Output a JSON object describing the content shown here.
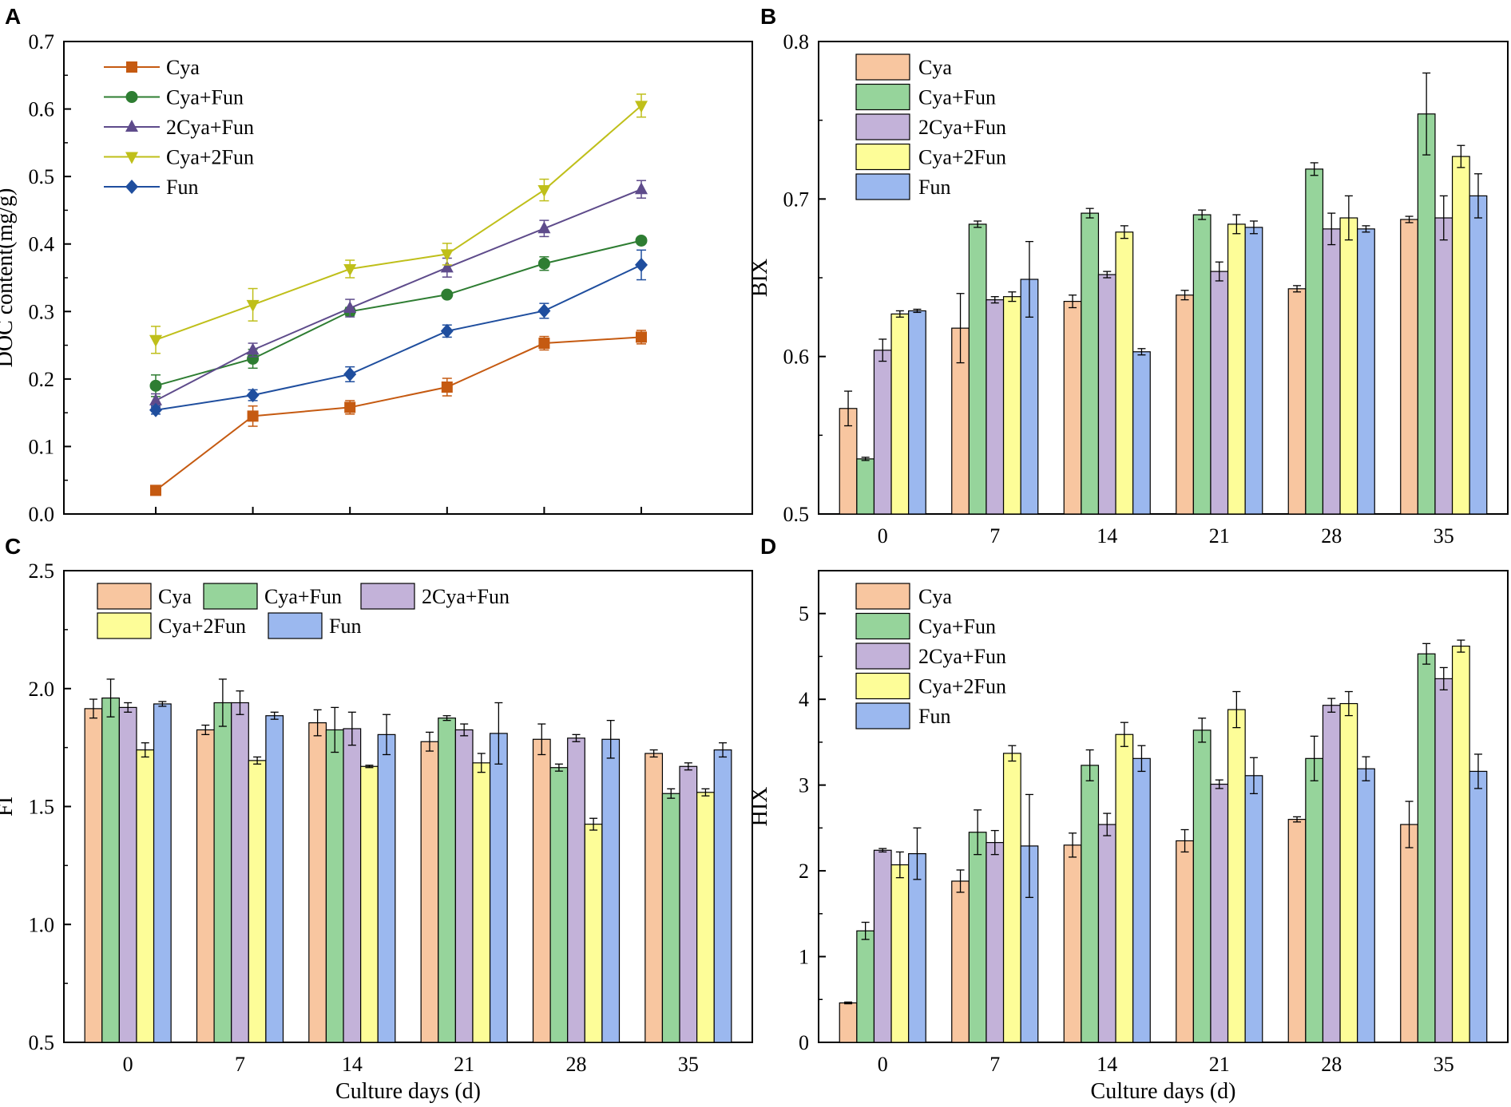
{
  "chart_data": [
    {
      "panel": "A",
      "type": "line",
      "xlabel": "",
      "ylabel": "DOC content(mg/g)",
      "ylim": [
        0,
        0.7
      ],
      "yticks": [
        "0.0",
        "0.1",
        "0.2",
        "0.3",
        "0.4",
        "0.5",
        "0.6",
        "0.7"
      ],
      "x": [
        0,
        7,
        14,
        21,
        28,
        35
      ],
      "legend_position": "top-left",
      "series": [
        {
          "name": "Cya",
          "color": "#c55a11",
          "marker": "square",
          "values": [
            0.035,
            0.145,
            0.158,
            0.188,
            0.253,
            0.262
          ],
          "errors": [
            0.003,
            0.015,
            0.01,
            0.013,
            0.01,
            0.01
          ]
        },
        {
          "name": "Cya+Fun",
          "color": "#2e7d32",
          "marker": "circle",
          "values": [
            0.19,
            0.23,
            0.3,
            0.325,
            0.371,
            0.405
          ],
          "errors": [
            0.016,
            0.014,
            0.006,
            0.004,
            0.01,
            0.004
          ]
        },
        {
          "name": "2Cya+Fun",
          "color": "#5e4b8b",
          "marker": "triangle-up",
          "values": [
            0.168,
            0.243,
            0.305,
            0.365,
            0.423,
            0.481
          ],
          "errors": [
            0.01,
            0.01,
            0.013,
            0.014,
            0.012,
            0.013
          ]
        },
        {
          "name": "Cya+2Fun",
          "color": "#bfbf1a",
          "marker": "triangle-down",
          "values": [
            0.258,
            0.31,
            0.363,
            0.385,
            0.48,
            0.605
          ],
          "errors": [
            0.02,
            0.024,
            0.013,
            0.016,
            0.016,
            0.017
          ]
        },
        {
          "name": "Fun",
          "color": "#1f4e9e",
          "marker": "diamond",
          "values": [
            0.154,
            0.176,
            0.207,
            0.271,
            0.301,
            0.369
          ],
          "errors": [
            0.006,
            0.008,
            0.011,
            0.009,
            0.011,
            0.022
          ]
        }
      ]
    },
    {
      "panel": "B",
      "type": "bar",
      "xlabel": "",
      "ylabel": "BIX",
      "ylim": [
        0.5,
        0.8
      ],
      "yticks": [
        "0.5",
        "0.6",
        "0.7",
        "0.8"
      ],
      "categories": [
        "0",
        "7",
        "14",
        "21",
        "28",
        "35"
      ],
      "legend_position": "top-left",
      "series": [
        {
          "name": "Cya",
          "color": "#f8c6a0",
          "values": [
            0.567,
            0.618,
            0.635,
            0.639,
            0.643,
            0.687
          ],
          "errors": [
            0.011,
            0.022,
            0.004,
            0.003,
            0.002,
            0.002
          ]
        },
        {
          "name": "Cya+Fun",
          "color": "#96d49b",
          "values": [
            0.535,
            0.684,
            0.691,
            0.69,
            0.719,
            0.754
          ],
          "errors": [
            0.001,
            0.002,
            0.003,
            0.003,
            0.004,
            0.026
          ]
        },
        {
          "name": "2Cya+Fun",
          "color": "#c3b2d9",
          "values": [
            0.604,
            0.636,
            0.652,
            0.654,
            0.681,
            0.688
          ],
          "errors": [
            0.007,
            0.002,
            0.002,
            0.006,
            0.01,
            0.014
          ]
        },
        {
          "name": "Cya+2Fun",
          "color": "#fdfd98",
          "values": [
            0.627,
            0.638,
            0.679,
            0.684,
            0.688,
            0.727
          ],
          "errors": [
            0.002,
            0.003,
            0.004,
            0.006,
            0.014,
            0.007
          ]
        },
        {
          "name": "Fun",
          "color": "#9bb8ef",
          "values": [
            0.629,
            0.649,
            0.603,
            0.682,
            0.681,
            0.702
          ],
          "errors": [
            0.001,
            0.024,
            0.002,
            0.004,
            0.002,
            0.014
          ]
        }
      ]
    },
    {
      "panel": "C",
      "type": "bar",
      "xlabel": "Culture days (d)",
      "ylabel": "FI",
      "ylim": [
        0.5,
        2.5
      ],
      "yticks": [
        "0.5",
        "1.0",
        "1.5",
        "2.0",
        "2.5"
      ],
      "categories": [
        "0",
        "7",
        "14",
        "21",
        "28",
        "35"
      ],
      "legend_position": "top",
      "series": [
        {
          "name": "Cya",
          "color": "#f8c6a0",
          "values": [
            1.915,
            1.825,
            1.855,
            1.775,
            1.785,
            1.725
          ],
          "errors": [
            0.04,
            0.02,
            0.055,
            0.04,
            0.065,
            0.015
          ]
        },
        {
          "name": "Cya+Fun",
          "color": "#96d49b",
          "values": [
            1.96,
            1.94,
            1.825,
            1.875,
            1.665,
            1.555
          ],
          "errors": [
            0.08,
            0.1,
            0.095,
            0.01,
            0.015,
            0.02
          ]
        },
        {
          "name": "2Cya+Fun",
          "color": "#c3b2d9",
          "values": [
            1.92,
            1.94,
            1.83,
            1.825,
            1.79,
            1.67
          ],
          "errors": [
            0.02,
            0.05,
            0.07,
            0.025,
            0.015,
            0.015
          ]
        },
        {
          "name": "Cya+2Fun",
          "color": "#fdfd98",
          "values": [
            1.74,
            1.695,
            1.67,
            1.685,
            1.425,
            1.56
          ],
          "errors": [
            0.03,
            0.015,
            0.005,
            0.04,
            0.025,
            0.015
          ]
        },
        {
          "name": "Fun",
          "color": "#9bb8ef",
          "values": [
            1.935,
            1.885,
            1.805,
            1.81,
            1.785,
            1.74
          ],
          "errors": [
            0.01,
            0.015,
            0.085,
            0.13,
            0.08,
            0.03
          ]
        }
      ]
    },
    {
      "panel": "D",
      "type": "bar",
      "xlabel": "Culture days (d)",
      "ylabel": "HIX",
      "ylim": [
        0,
        5.5
      ],
      "yticks": [
        "0",
        "1",
        "2",
        "3",
        "4",
        "5"
      ],
      "categories": [
        "0",
        "7",
        "14",
        "21",
        "28",
        "35"
      ],
      "legend_position": "top-left",
      "series": [
        {
          "name": "Cya",
          "color": "#f8c6a0",
          "values": [
            0.46,
            1.88,
            2.3,
            2.35,
            2.6,
            2.54
          ],
          "errors": [
            0.01,
            0.13,
            0.14,
            0.13,
            0.03,
            0.27
          ]
        },
        {
          "name": "Cya+Fun",
          "color": "#96d49b",
          "values": [
            1.3,
            2.45,
            3.23,
            3.64,
            3.31,
            4.53
          ],
          "errors": [
            0.1,
            0.26,
            0.18,
            0.14,
            0.26,
            0.12
          ]
        },
        {
          "name": "2Cya+Fun",
          "color": "#c3b2d9",
          "values": [
            2.24,
            2.33,
            2.54,
            3.01,
            3.93,
            4.24
          ],
          "errors": [
            0.02,
            0.14,
            0.13,
            0.05,
            0.08,
            0.13
          ]
        },
        {
          "name": "Cya+2Fun",
          "color": "#fdfd98",
          "values": [
            2.07,
            3.37,
            3.59,
            3.88,
            3.95,
            4.62
          ],
          "errors": [
            0.15,
            0.09,
            0.14,
            0.21,
            0.14,
            0.07
          ]
        },
        {
          "name": "Fun",
          "color": "#9bb8ef",
          "values": [
            2.2,
            2.29,
            3.31,
            3.11,
            3.19,
            3.16
          ],
          "errors": [
            0.3,
            0.6,
            0.15,
            0.21,
            0.14,
            0.2
          ]
        }
      ]
    }
  ]
}
